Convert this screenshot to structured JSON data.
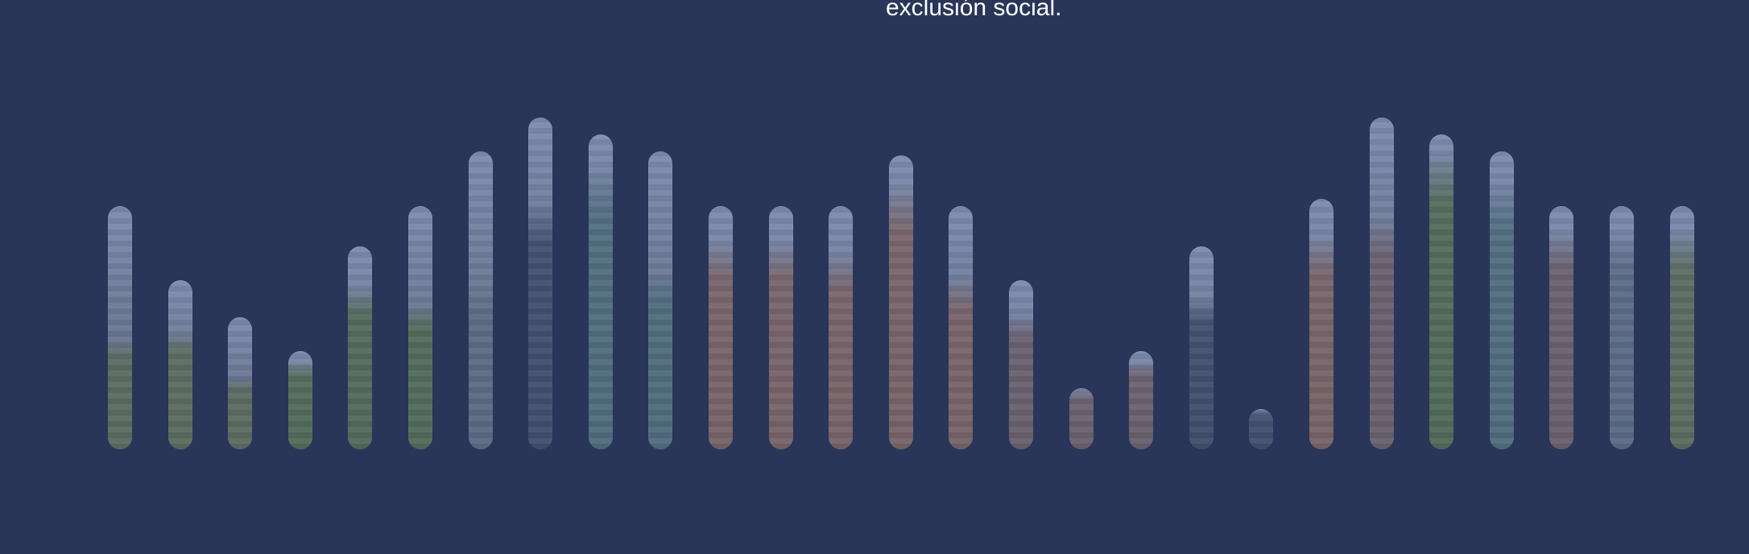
{
  "caption": "exclusión social.",
  "colors": {
    "background": "#293559",
    "bar_base": "#6c7894",
    "photo_tones": [
      "#5b6b5a",
      "#4f6a52",
      "#5a6a84",
      "#3b4a6a",
      "#6a5e6a",
      "#7a6264",
      "#4d6c7c"
    ]
  },
  "bars": [
    {
      "level": 0.72,
      "photo_level": 0.45,
      "tone": 0
    },
    {
      "level": 0.5,
      "photo_level": 0.7,
      "tone": 0
    },
    {
      "level": 0.39,
      "photo_level": 0.55,
      "tone": 0
    },
    {
      "level": 0.29,
      "photo_level": 0.9,
      "tone": 1
    },
    {
      "level": 0.6,
      "photo_level": 0.8,
      "tone": 1
    },
    {
      "level": 0.72,
      "photo_level": 0.6,
      "tone": 1
    },
    {
      "level": 0.88,
      "photo_level": 0.55,
      "tone": 2
    },
    {
      "level": 0.98,
      "photo_level": 0.75,
      "tone": 3
    },
    {
      "level": 0.93,
      "photo_level": 0.9,
      "tone": 6
    },
    {
      "level": 0.88,
      "photo_level": 0.6,
      "tone": 6
    },
    {
      "level": 0.72,
      "photo_level": 0.85,
      "tone": 5
    },
    {
      "level": 0.72,
      "photo_level": 0.85,
      "tone": 5
    },
    {
      "level": 0.72,
      "photo_level": 0.8,
      "tone": 5
    },
    {
      "level": 0.87,
      "photo_level": 0.9,
      "tone": 5
    },
    {
      "level": 0.72,
      "photo_level": 0.7,
      "tone": 5
    },
    {
      "level": 0.5,
      "photo_level": 0.8,
      "tone": 4
    },
    {
      "level": 0.18,
      "photo_level": 1.0,
      "tone": 4
    },
    {
      "level": 0.29,
      "photo_level": 0.9,
      "tone": 4
    },
    {
      "level": 0.6,
      "photo_level": 0.75,
      "tone": 3
    },
    {
      "level": 0.12,
      "photo_level": 1.0,
      "tone": 3
    },
    {
      "level": 0.74,
      "photo_level": 0.85,
      "tone": 5
    },
    {
      "level": 0.98,
      "photo_level": 0.7,
      "tone": 4
    },
    {
      "level": 0.93,
      "photo_level": 0.95,
      "tone": 1
    },
    {
      "level": 0.88,
      "photo_level": 0.9,
      "tone": 6
    },
    {
      "level": 0.72,
      "photo_level": 0.9,
      "tone": 4
    },
    {
      "level": 0.72,
      "photo_level": 0.9,
      "tone": 2
    },
    {
      "level": 0.72,
      "photo_level": 0.9,
      "tone": 0
    }
  ]
}
